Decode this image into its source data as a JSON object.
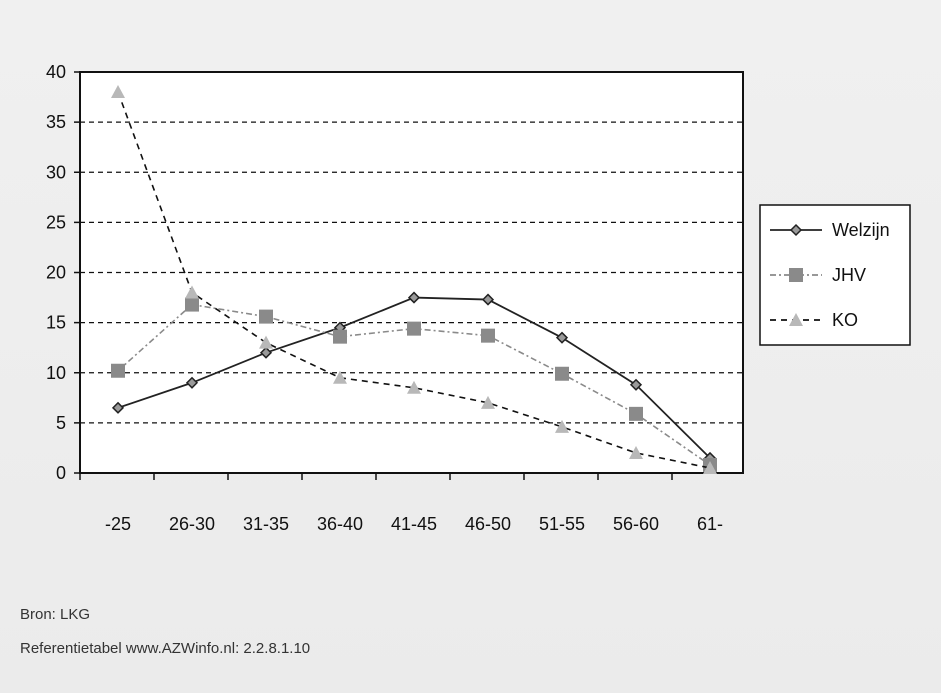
{
  "chart_data": {
    "type": "line",
    "title": "",
    "xlabel": "",
    "ylabel": "",
    "categories": [
      "-25",
      "26-30",
      "31-35",
      "36-40",
      "41-45",
      "46-50",
      "51-55",
      "56-60",
      "61-"
    ],
    "ylim": [
      0,
      40
    ],
    "yticks": [
      0,
      5,
      10,
      15,
      20,
      25,
      30,
      35,
      40
    ],
    "grid": true,
    "legend_position": "right",
    "series": [
      {
        "name": "Welzijn",
        "values": [
          6.5,
          9,
          12,
          14.5,
          17.5,
          17.3,
          13.5,
          8.8,
          1.5
        ],
        "color": "#222222",
        "line_style": "solid",
        "marker": "diamond"
      },
      {
        "name": "JHV",
        "values": [
          10.2,
          16.8,
          15.6,
          13.6,
          14.4,
          13.7,
          9.9,
          5.9,
          0.8
        ],
        "color": "#8a8a8a",
        "line_style": "dash-dot",
        "marker": "square"
      },
      {
        "name": "KO",
        "values": [
          38,
          18,
          13,
          9.5,
          8.5,
          7,
          4.6,
          2,
          0.5
        ],
        "color": "#111111",
        "line_style": "dashed",
        "marker": "triangle"
      }
    ]
  },
  "footer": {
    "source": "Bron: LKG",
    "reference": "Referentietabel www.AZWinfo.nl:  2.2.8.1.10"
  }
}
